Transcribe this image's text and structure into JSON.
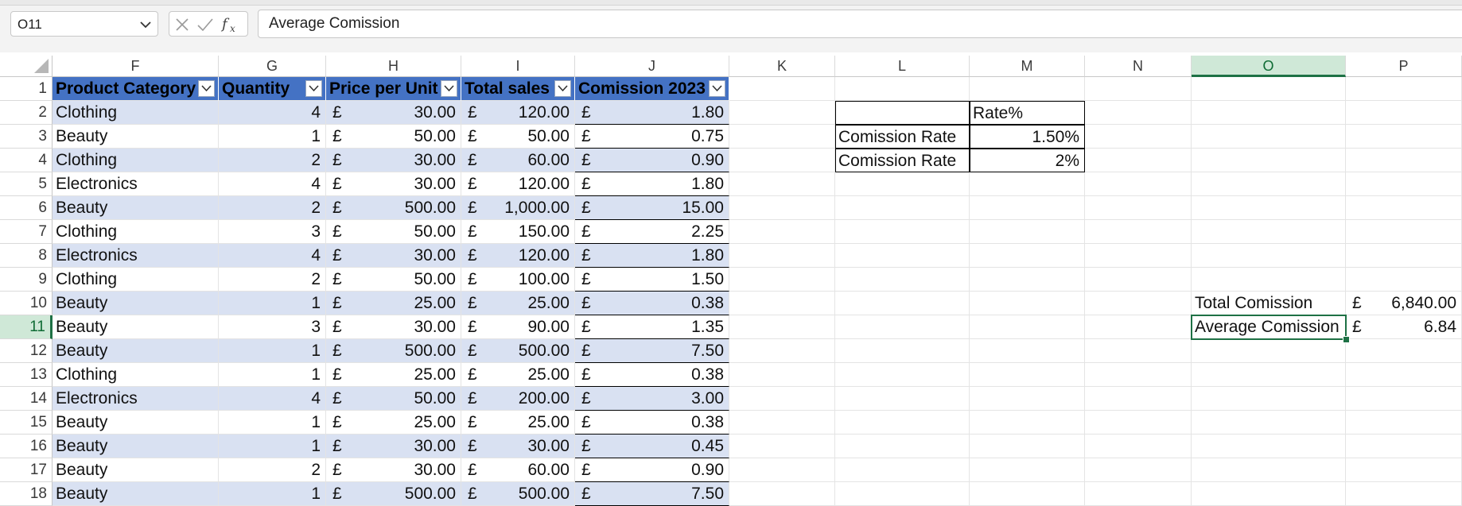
{
  "formula_bar": {
    "name_box": "O11",
    "formula": "Average Comission",
    "icons": [
      "cancel-icon",
      "enter-icon",
      "function-icon"
    ]
  },
  "columns": [
    "F",
    "G",
    "H",
    "I",
    "J",
    "K",
    "L",
    "M",
    "N",
    "O",
    "P"
  ],
  "rows": [
    "1",
    "2",
    "3",
    "4",
    "5",
    "6",
    "7",
    "8",
    "9",
    "10",
    "11",
    "12",
    "13",
    "14",
    "15",
    "16",
    "17",
    "18"
  ],
  "table": {
    "headers": [
      "Product Category",
      "Quantity",
      "Price per Unit",
      "Total sales",
      "Comission 2023"
    ],
    "currency_symbol": "£",
    "rows": [
      [
        "Clothing",
        "4",
        "30.00",
        "120.00",
        "1.80"
      ],
      [
        "Beauty",
        "1",
        "50.00",
        "50.00",
        "0.75"
      ],
      [
        "Clothing",
        "2",
        "30.00",
        "60.00",
        "0.90"
      ],
      [
        "Electronics",
        "4",
        "30.00",
        "120.00",
        "1.80"
      ],
      [
        "Beauty",
        "2",
        "500.00",
        "1,000.00",
        "15.00"
      ],
      [
        "Clothing",
        "3",
        "50.00",
        "150.00",
        "2.25"
      ],
      [
        "Electronics",
        "4",
        "30.00",
        "120.00",
        "1.80"
      ],
      [
        "Clothing",
        "2",
        "50.00",
        "100.00",
        "1.50"
      ],
      [
        "Beauty",
        "1",
        "25.00",
        "25.00",
        "0.38"
      ],
      [
        "Beauty",
        "3",
        "30.00",
        "90.00",
        "1.35"
      ],
      [
        "Beauty",
        "1",
        "500.00",
        "500.00",
        "7.50"
      ],
      [
        "Clothing",
        "1",
        "25.00",
        "25.00",
        "0.38"
      ],
      [
        "Electronics",
        "4",
        "50.00",
        "200.00",
        "3.00"
      ],
      [
        "Beauty",
        "1",
        "25.00",
        "25.00",
        "0.38"
      ],
      [
        "Beauty",
        "1",
        "30.00",
        "30.00",
        "0.45"
      ],
      [
        "Beauty",
        "2",
        "30.00",
        "60.00",
        "0.90"
      ],
      [
        "Beauty",
        "1",
        "500.00",
        "500.00",
        "7.50"
      ]
    ]
  },
  "rate_table": {
    "header": "Rate%",
    "rows": [
      [
        "Comission Rate",
        "1.50%"
      ],
      [
        "Comission Rate",
        "2%"
      ]
    ]
  },
  "summary": {
    "total_label": "Total Comission",
    "total_currency": "£",
    "total_value": "6,840.00",
    "average_label": "Average Comission",
    "average_currency": "£",
    "average_value": "6.84"
  },
  "selection": {
    "active_cell": "O11",
    "active_column": "O",
    "active_row": "11"
  },
  "colors": {
    "table_header": "#4472c4",
    "band": "#d9e1f2",
    "selection": "#1e7145"
  }
}
